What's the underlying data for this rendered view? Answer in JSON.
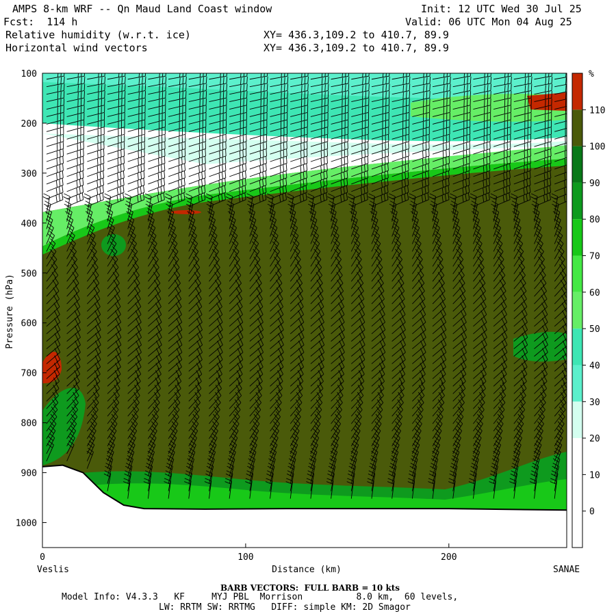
{
  "header": {
    "title": "AMPS 8-km WRF -- Qn Maud Land Coast window",
    "init": "Init: 12 UTC Wed 30 Jul 25",
    "fcst": "Fcst:  114 h",
    "valid": "Valid: 06 UTC Mon 04 Aug 25",
    "field1": "Relative humidity (w.r.t. ice)",
    "field1_xy": "XY= 436.3,109.2 to 410.7, 89.9",
    "field2": "Horizontal wind vectors",
    "field2_xy": "XY= 436.3,109.2 to 410.7, 89.9"
  },
  "chart_data": {
    "type": "heatmap",
    "xlabel": "Distance (km)",
    "ylabel": "Pressure (hPa)",
    "x_ticks": [
      0,
      100,
      200
    ],
    "y_ticks": [
      100,
      200,
      300,
      400,
      500,
      600,
      700,
      800,
      900,
      1000
    ],
    "xlim": [
      0,
      258
    ],
    "ylim": [
      100,
      1050
    ],
    "y_inverted": true,
    "start_label": "Veslis",
    "end_label": "SANAE",
    "colorbar": {
      "unit": "%",
      "levels": [
        0,
        10,
        20,
        30,
        40,
        50,
        60,
        70,
        80,
        90,
        100,
        110
      ],
      "colors": [
        "#ffffff",
        "#ffffff",
        "#ffffff",
        "#d4fff0",
        "#5cf0cc",
        "#3ee6b4",
        "#66ee66",
        "#44e844",
        "#18c818",
        "#0e9a1e",
        "#087818",
        "#4a5a0a",
        "#c42800"
      ]
    },
    "terrain": [
      {
        "x": 0,
        "p": 888
      },
      {
        "x": 10,
        "p": 885
      },
      {
        "x": 20,
        "p": 900
      },
      {
        "x": 30,
        "p": 940
      },
      {
        "x": 40,
        "p": 965
      },
      {
        "x": 50,
        "p": 972
      },
      {
        "x": 80,
        "p": 973
      },
      {
        "x": 120,
        "p": 972
      },
      {
        "x": 160,
        "p": 972
      },
      {
        "x": 200,
        "p": 972
      },
      {
        "x": 258,
        "p": 975
      }
    ],
    "rh_regions": [
      {
        "name": "upper-moist",
        "rh_min": 40,
        "rh_max": 60,
        "p_range": [
          100,
          260
        ]
      },
      {
        "name": "dry-layer",
        "rh_min": 0,
        "rh_max": 30,
        "p_range": [
          160,
          370
        ]
      },
      {
        "name": "saturated-bulk",
        "rh_min": 100,
        "rh_max": 110,
        "p_range": [
          260,
          975
        ]
      },
      {
        "name": "supersaturated-patch-upper",
        "rh_min": 110,
        "rh_max": 120,
        "p_range": [
          130,
          170
        ]
      },
      {
        "name": "supersaturated-patch-left",
        "rh_min": 110,
        "rh_max": 120,
        "p_range": [
          660,
          750
        ]
      }
    ],
    "barb_info": "BARB VECTORS:  FULL BARB = 10 kts"
  },
  "footer": {
    "model_info": "Model Info: V4.3.3   KF     MYJ PBL  Morrison          8.0 km,  60 levels,",
    "model_info2": "LW: RRTM SW: RRTMG   DIFF: simple KM: 2D Smagor"
  }
}
